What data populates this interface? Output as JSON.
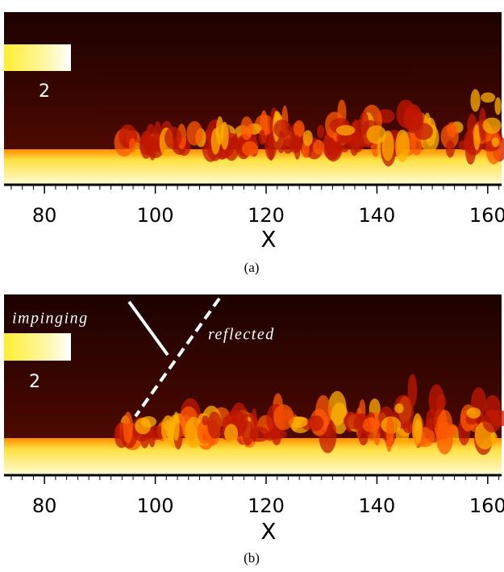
{
  "panels": [
    {
      "caption": "(a)",
      "xlabel": "X",
      "xlim": [
        72.7,
        162.5
      ],
      "xticks": [
        80,
        100,
        120,
        140,
        160
      ],
      "colorbar_label": "2"
    },
    {
      "caption": "(b)",
      "xlabel": "X",
      "xlim": [
        72.7,
        162.5
      ],
      "xticks": [
        80,
        100,
        120,
        140,
        160
      ],
      "colorbar_label": "2",
      "annotations": [
        "impinging",
        "reflected"
      ]
    }
  ]
}
